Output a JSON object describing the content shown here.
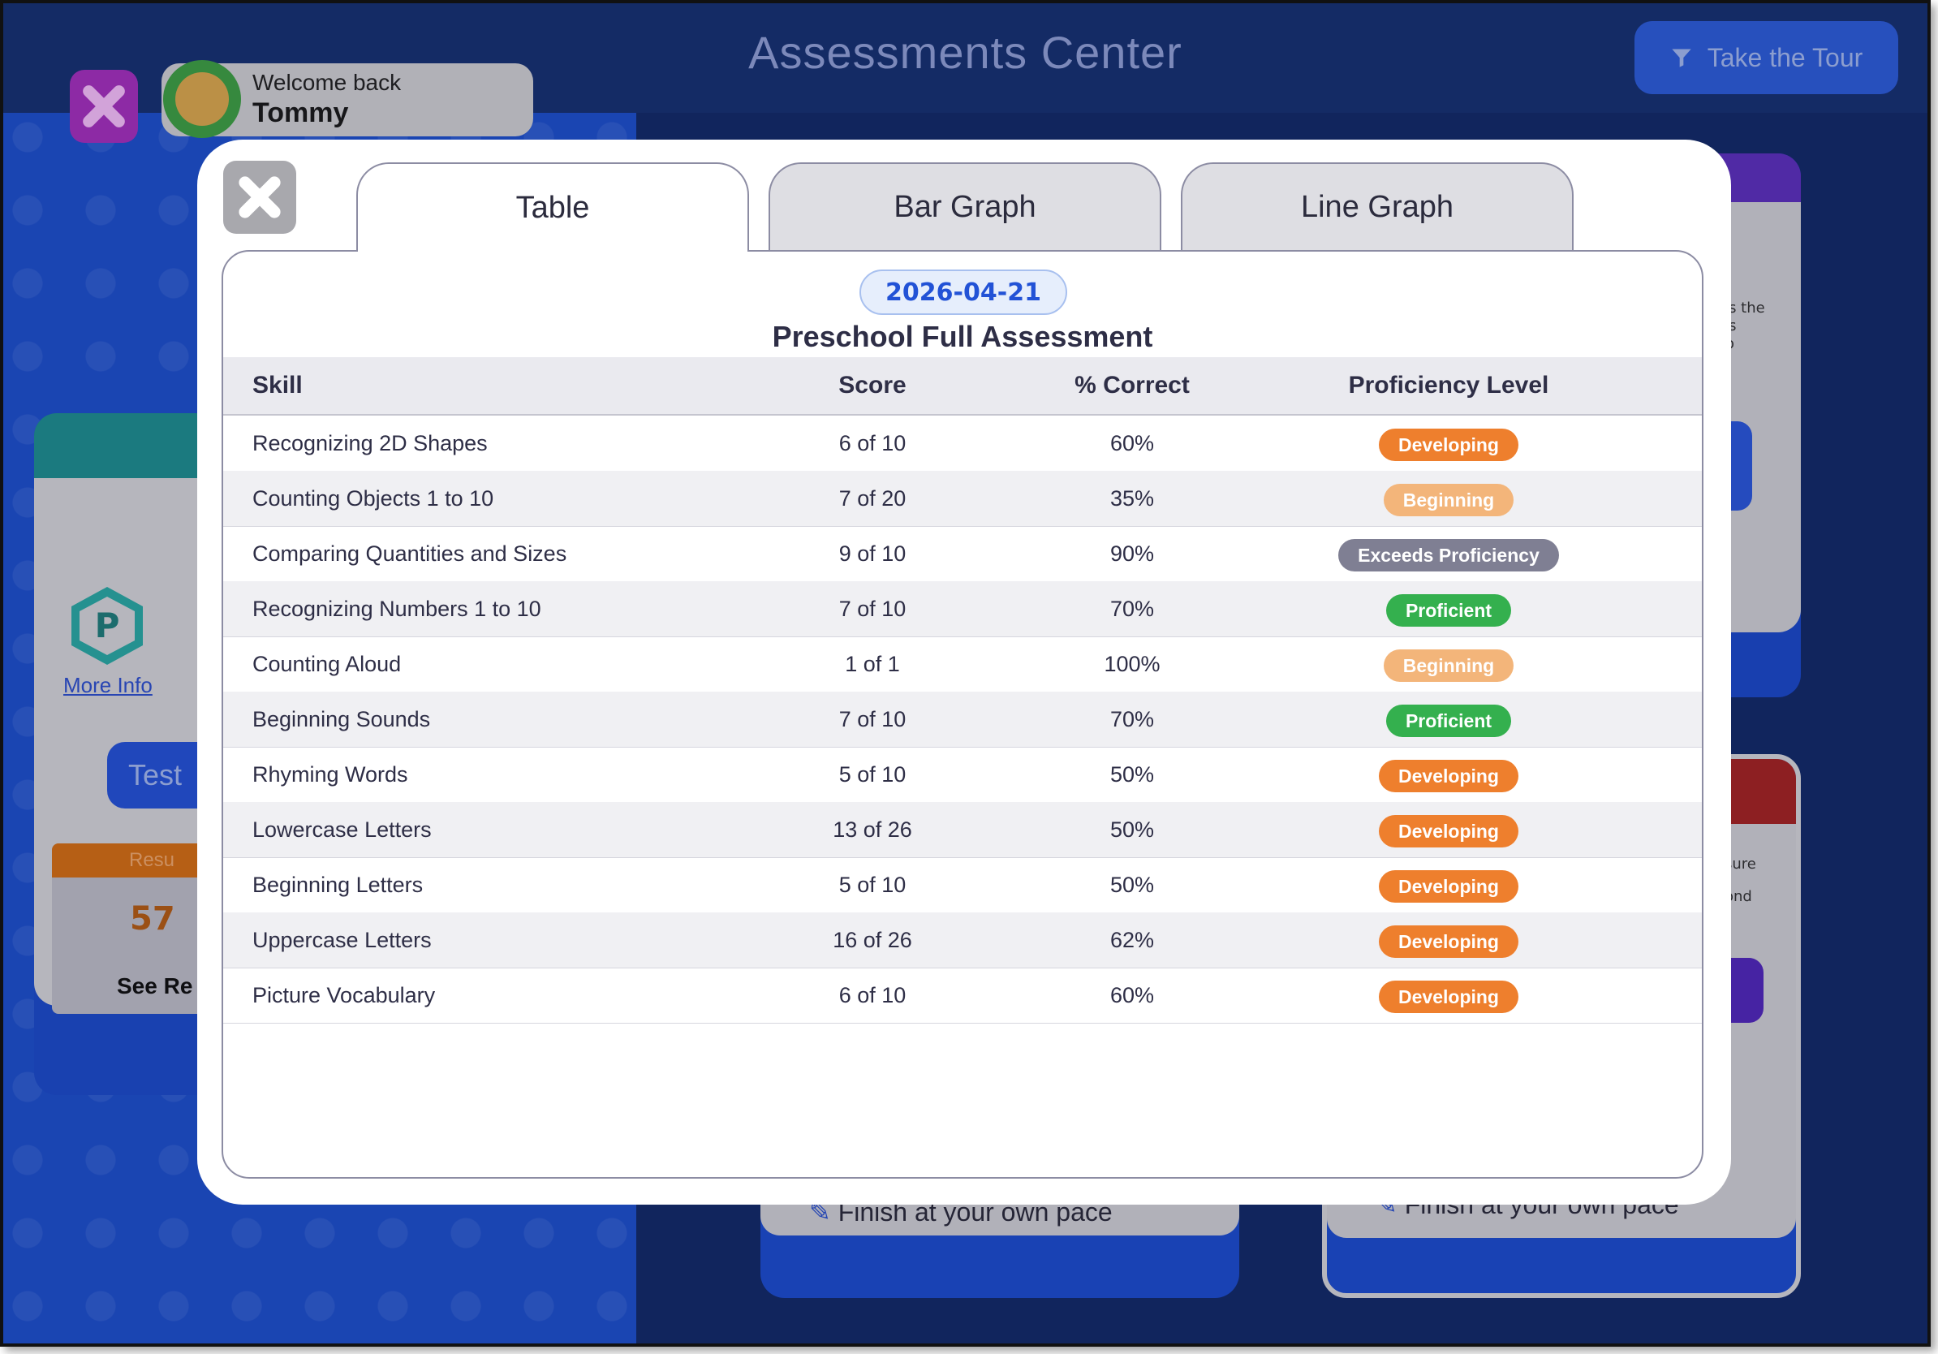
{
  "app": {
    "title": "Assessments Center",
    "tour_label": "Take the Tour"
  },
  "user": {
    "welcome": "Welcome back",
    "name": "Tommy"
  },
  "background_cards": {
    "left": {
      "badge_letter": "P",
      "more_info": "More Info",
      "test_button": "Test",
      "results_label": "Resu",
      "results_pct": "57",
      "see_results": "See Re"
    },
    "right_top": {
      "text": "es the\nes\nto"
    },
    "right_bottom": {
      "text1": "sure",
      "text2": "ond",
      "pace": "Finish at your own pace"
    },
    "middle": {
      "pace": "Finish at your own pace"
    }
  },
  "modal": {
    "tabs": [
      {
        "label": "Table",
        "active": true
      },
      {
        "label": "Bar Graph",
        "active": false
      },
      {
        "label": "Line Graph",
        "active": false
      }
    ],
    "date": "2026-04-21",
    "assessment_title": "Preschool Full Assessment",
    "columns": {
      "skill": "Skill",
      "score": "Score",
      "pct": "% Correct",
      "prof": "Proficiency Level"
    },
    "rows": [
      {
        "skill": "Recognizing 2D Shapes",
        "score": "6 of 10",
        "pct": "60%",
        "prof": "Developing"
      },
      {
        "skill": "Counting Objects 1 to 10",
        "score": "7 of 20",
        "pct": "35%",
        "prof": "Beginning"
      },
      {
        "skill": "Comparing Quantities and Sizes",
        "score": "9 of 10",
        "pct": "90%",
        "prof": "Exceeds Proficiency"
      },
      {
        "skill": "Recognizing Numbers 1 to 10",
        "score": "7 of 10",
        "pct": "70%",
        "prof": "Proficient"
      },
      {
        "skill": "Counting Aloud",
        "score": "1 of 1",
        "pct": "100%",
        "prof": "Beginning"
      },
      {
        "skill": "Beginning Sounds",
        "score": "7 of 10",
        "pct": "70%",
        "prof": "Proficient"
      },
      {
        "skill": "Rhyming Words",
        "score": "5 of 10",
        "pct": "50%",
        "prof": "Developing"
      },
      {
        "skill": "Lowercase Letters",
        "score": "13 of 26",
        "pct": "50%",
        "prof": "Developing"
      },
      {
        "skill": "Beginning Letters",
        "score": "5 of 10",
        "pct": "50%",
        "prof": "Developing"
      },
      {
        "skill": "Uppercase Letters",
        "score": "16 of 26",
        "pct": "62%",
        "prof": "Developing"
      },
      {
        "skill": "Picture Vocabulary",
        "score": "6 of 10",
        "pct": "60%",
        "prof": "Developing"
      }
    ],
    "proficiency_colors": {
      "Developing": "#ee7f2d",
      "Beginning": "#f3b57a",
      "Exceeds Proficiency": "#7f7f93",
      "Proficient": "#34b04e"
    }
  },
  "icons": {
    "app_close": "close-icon",
    "modal_close": "close-icon",
    "tour": "funnel-icon",
    "pace": "pencil-icon"
  }
}
